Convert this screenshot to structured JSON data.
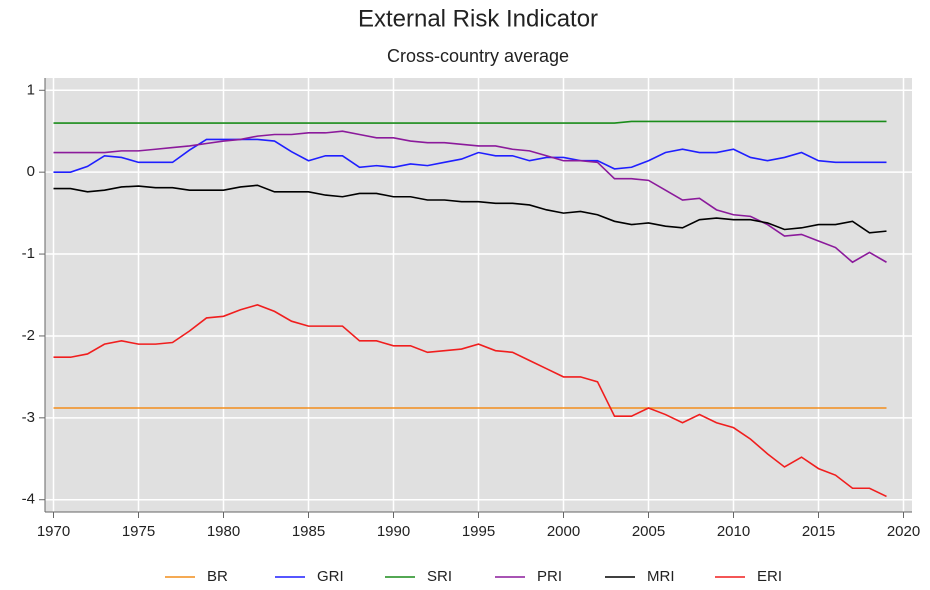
{
  "chart_data": {
    "type": "line",
    "title": "External Risk Indicator",
    "subtitle": "Cross-country average",
    "x": [
      1970,
      1971,
      1972,
      1973,
      1974,
      1975,
      1976,
      1977,
      1978,
      1979,
      1980,
      1981,
      1982,
      1983,
      1984,
      1985,
      1986,
      1987,
      1988,
      1989,
      1990,
      1991,
      1992,
      1993,
      1994,
      1995,
      1996,
      1997,
      1998,
      1999,
      2000,
      2001,
      2002,
      2003,
      2004,
      2005,
      2006,
      2007,
      2008,
      2009,
      2010,
      2011,
      2012,
      2013,
      2014,
      2015,
      2016,
      2017,
      2018,
      2019
    ],
    "xlim": [
      1969.5,
      2020.5
    ],
    "xticks": [
      1970,
      1975,
      1980,
      1985,
      1990,
      1995,
      2000,
      2005,
      2010,
      2015,
      2020
    ],
    "ylim": [
      -4.15,
      1.15
    ],
    "yticks": [
      1,
      0,
      -1,
      -2,
      -3,
      -4
    ],
    "grid": true,
    "legend": "bottom",
    "series": [
      {
        "name": "BR",
        "color": "#f28e1c",
        "values": [
          -2.88,
          -2.88,
          -2.88,
          -2.88,
          -2.88,
          -2.88,
          -2.88,
          -2.88,
          -2.88,
          -2.88,
          -2.88,
          -2.88,
          -2.88,
          -2.88,
          -2.88,
          -2.88,
          -2.88,
          -2.88,
          -2.88,
          -2.88,
          -2.88,
          -2.88,
          -2.88,
          -2.88,
          -2.88,
          -2.88,
          -2.88,
          -2.88,
          -2.88,
          -2.88,
          -2.88,
          -2.88,
          -2.88,
          -2.88,
          -2.88,
          -2.88,
          -2.88,
          -2.88,
          -2.88,
          -2.88,
          -2.88,
          -2.88,
          -2.88,
          -2.88,
          -2.88,
          -2.88,
          -2.88,
          -2.88,
          -2.88,
          -2.88
        ]
      },
      {
        "name": "GRI",
        "color": "#1f1fff",
        "values": [
          0,
          0,
          0.07,
          0.2,
          0.18,
          0.12,
          0.12,
          0.12,
          0.27,
          0.4,
          0.4,
          0.4,
          0.4,
          0.38,
          0.25,
          0.14,
          0.2,
          0.2,
          0.06,
          0.08,
          0.06,
          0.1,
          0.08,
          0.12,
          0.16,
          0.24,
          0.2,
          0.2,
          0.14,
          0.18,
          0.18,
          0.14,
          0.14,
          0.04,
          0.06,
          0.14,
          0.24,
          0.28,
          0.24,
          0.24,
          0.28,
          0.18,
          0.14,
          0.18,
          0.24,
          0.14,
          0.12,
          0.12,
          0.12,
          0.12
        ]
      },
      {
        "name": "SRI",
        "color": "#1a8c1a",
        "values": [
          0.6,
          0.6,
          0.6,
          0.6,
          0.6,
          0.6,
          0.6,
          0.6,
          0.6,
          0.6,
          0.6,
          0.6,
          0.6,
          0.6,
          0.6,
          0.6,
          0.6,
          0.6,
          0.6,
          0.6,
          0.6,
          0.6,
          0.6,
          0.6,
          0.6,
          0.6,
          0.6,
          0.6,
          0.6,
          0.6,
          0.6,
          0.6,
          0.6,
          0.6,
          0.62,
          0.62,
          0.62,
          0.62,
          0.62,
          0.62,
          0.62,
          0.62,
          0.62,
          0.62,
          0.62,
          0.62,
          0.62,
          0.62,
          0.62,
          0.62
        ]
      },
      {
        "name": "PRI",
        "color": "#8b1a9b",
        "values": [
          0.24,
          0.24,
          0.24,
          0.24,
          0.26,
          0.26,
          0.28,
          0.3,
          0.32,
          0.35,
          0.38,
          0.4,
          0.44,
          0.46,
          0.46,
          0.48,
          0.48,
          0.5,
          0.46,
          0.42,
          0.42,
          0.38,
          0.36,
          0.36,
          0.34,
          0.32,
          0.32,
          0.28,
          0.26,
          0.2,
          0.14,
          0.14,
          0.12,
          -0.08,
          -0.08,
          -0.1,
          -0.22,
          -0.34,
          -0.32,
          -0.46,
          -0.52,
          -0.54,
          -0.64,
          -0.78,
          -0.76,
          -0.84,
          -0.92,
          -1.1,
          -0.98,
          -1.1
        ]
      },
      {
        "name": "MRI",
        "color": "#000000",
        "values": [
          -0.2,
          -0.2,
          -0.24,
          -0.22,
          -0.18,
          -0.17,
          -0.19,
          -0.19,
          -0.22,
          -0.22,
          -0.22,
          -0.18,
          -0.16,
          -0.24,
          -0.24,
          -0.24,
          -0.28,
          -0.3,
          -0.26,
          -0.26,
          -0.3,
          -0.3,
          -0.34,
          -0.34,
          -0.36,
          -0.36,
          -0.38,
          -0.38,
          -0.4,
          -0.46,
          -0.5,
          -0.48,
          -0.52,
          -0.6,
          -0.64,
          -0.62,
          -0.66,
          -0.68,
          -0.58,
          -0.56,
          -0.58,
          -0.58,
          -0.62,
          -0.7,
          -0.68,
          -0.64,
          -0.64,
          -0.6,
          -0.74,
          -0.72
        ]
      },
      {
        "name": "ERI",
        "color": "#f01e1e",
        "values": [
          -2.26,
          -2.26,
          -2.22,
          -2.1,
          -2.06,
          -2.1,
          -2.1,
          -2.08,
          -1.94,
          -1.78,
          -1.76,
          -1.68,
          -1.62,
          -1.7,
          -1.82,
          -1.88,
          -1.88,
          -1.88,
          -2.06,
          -2.06,
          -2.12,
          -2.12,
          -2.2,
          -2.18,
          -2.16,
          -2.1,
          -2.18,
          -2.2,
          -2.3,
          -2.4,
          -2.5,
          -2.5,
          -2.56,
          -2.98,
          -2.98,
          -2.88,
          -2.96,
          -3.06,
          -2.96,
          -3.06,
          -3.12,
          -3.26,
          -3.44,
          -3.6,
          -3.48,
          -3.62,
          -3.7,
          -3.86,
          -3.86,
          -3.96
        ]
      }
    ]
  }
}
